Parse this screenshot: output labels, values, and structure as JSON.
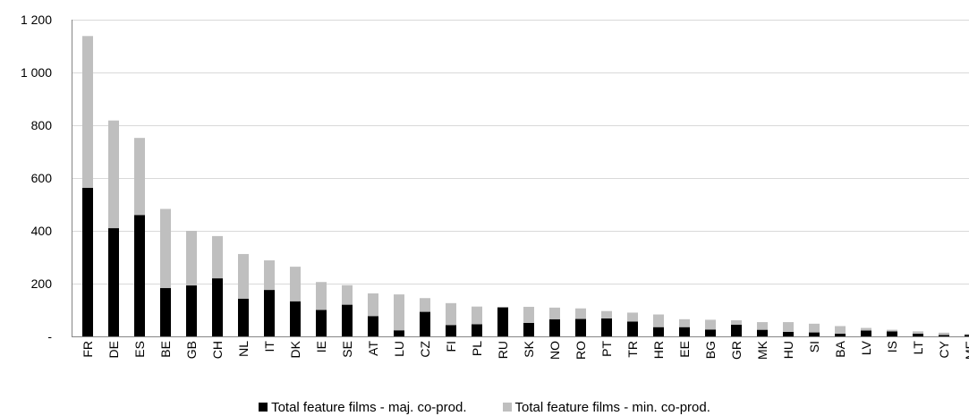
{
  "chart_data": {
    "type": "bar",
    "stacked": true,
    "title": "",
    "xlabel": "",
    "ylabel": "",
    "ylim": [
      0,
      1200
    ],
    "yticks": [
      0,
      200,
      400,
      600,
      800,
      1000,
      1200
    ],
    "ytick_labels": [
      "-",
      "200",
      "400",
      "600",
      "800",
      "1 000",
      "1 200"
    ],
    "grid": true,
    "legend_position": "bottom",
    "categories": [
      "FR",
      "DE",
      "ES",
      "BE",
      "GB",
      "CH",
      "NL",
      "IT",
      "DK",
      "IE",
      "SE",
      "AT",
      "LU",
      "CZ",
      "FI",
      "PL",
      "RU",
      "SK",
      "NO",
      "RO",
      "PT",
      "TR",
      "HR",
      "EE",
      "BG",
      "GR",
      "MK",
      "HU",
      "SI",
      "BA",
      "LV",
      "IS",
      "LT",
      "CY",
      "ME"
    ],
    "series": [
      {
        "name": "Total feature films - maj. co-prod.",
        "color": "#000000",
        "values": [
          563,
          410,
          460,
          183,
          193,
          220,
          143,
          176,
          133,
          100,
          120,
          77,
          23,
          93,
          43,
          46,
          110,
          51,
          65,
          66,
          68,
          56,
          35,
          35,
          26,
          44,
          25,
          17,
          15,
          10,
          22,
          19,
          10,
          5,
          6
        ]
      },
      {
        "name": "Total feature films - min. co-prod.",
        "color": "#bfbfbf",
        "values": [
          575,
          408,
          292,
          300,
          207,
          160,
          169,
          112,
          131,
          106,
          74,
          86,
          136,
          52,
          83,
          67,
          0,
          61,
          44,
          40,
          28,
          34,
          48,
          30,
          37,
          17,
          29,
          37,
          33,
          29,
          10,
          6,
          9,
          9,
          3
        ]
      }
    ]
  }
}
